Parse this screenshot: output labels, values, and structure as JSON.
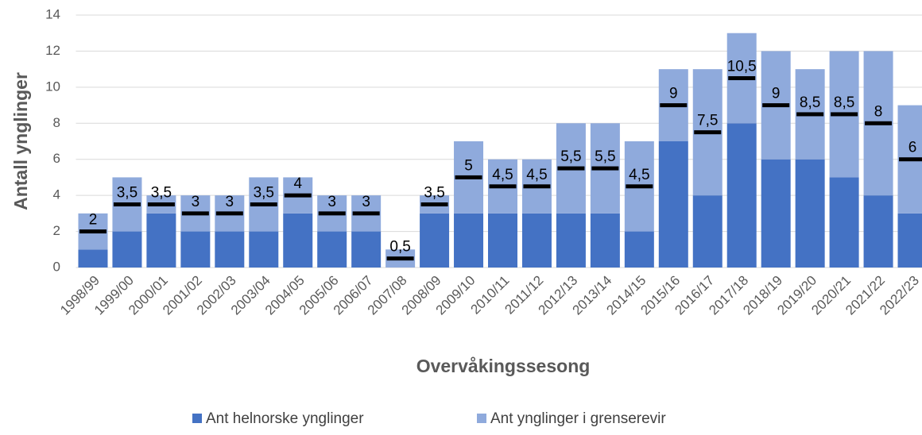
{
  "chart_data": {
    "type": "stacked_bar",
    "categories": [
      "1998/99",
      "1999/00",
      "2000/01",
      "2001/02",
      "2002/03",
      "2003/04",
      "2004/05",
      "2005/06",
      "2006/07",
      "2007/08",
      "2008/09",
      "2009/10",
      "2010/11",
      "2011/12",
      "2012/13",
      "2013/14",
      "2014/15",
      "2015/16",
      "2016/17",
      "2017/18",
      "2018/19",
      "2019/20",
      "2020/21",
      "2021/22",
      "2022/23"
    ],
    "series": [
      {
        "name": "Ant helnorske ynglinger",
        "color": "#4472c4",
        "values": [
          1,
          2,
          3,
          2,
          2,
          2,
          3,
          2,
          2,
          0,
          3,
          3,
          3,
          3,
          3,
          3,
          2,
          7,
          4,
          8,
          6,
          6,
          5,
          4,
          3
        ]
      },
      {
        "name": "Ant ynglinger i grenserevir",
        "color": "#8faadc",
        "values": [
          2,
          3,
          1,
          2,
          2,
          3,
          2,
          2,
          2,
          1,
          1,
          4,
          3,
          3,
          5,
          5,
          5,
          4,
          7,
          5,
          6,
          5,
          7,
          8,
          6
        ]
      }
    ],
    "markers": {
      "color": "#000000",
      "values": [
        2,
        3.5,
        3.5,
        3,
        3,
        3.5,
        4,
        3,
        3,
        0.5,
        3.5,
        5,
        4.5,
        4.5,
        5.5,
        5.5,
        4.5,
        9,
        7.5,
        10.5,
        9,
        8.5,
        8.5,
        8,
        6
      ],
      "value_labels": [
        "2",
        "3,5",
        "3,5",
        "3",
        "3",
        "3,5",
        "4",
        "3",
        "3",
        "0,5",
        "3,5",
        "5",
        "4,5",
        "4,5",
        "5,5",
        "5,5",
        "4,5",
        "9",
        "7,5",
        "10,5",
        "9",
        "8,5",
        "8,5",
        "8",
        "6"
      ]
    },
    "xlabel": "Overvåkingssesong",
    "ylabel": "Antall ynglinger",
    "ylim": [
      0,
      14
    ],
    "yticks": [
      0,
      2,
      4,
      6,
      8,
      10,
      12,
      14
    ],
    "grid": true,
    "legend": "bottom"
  }
}
